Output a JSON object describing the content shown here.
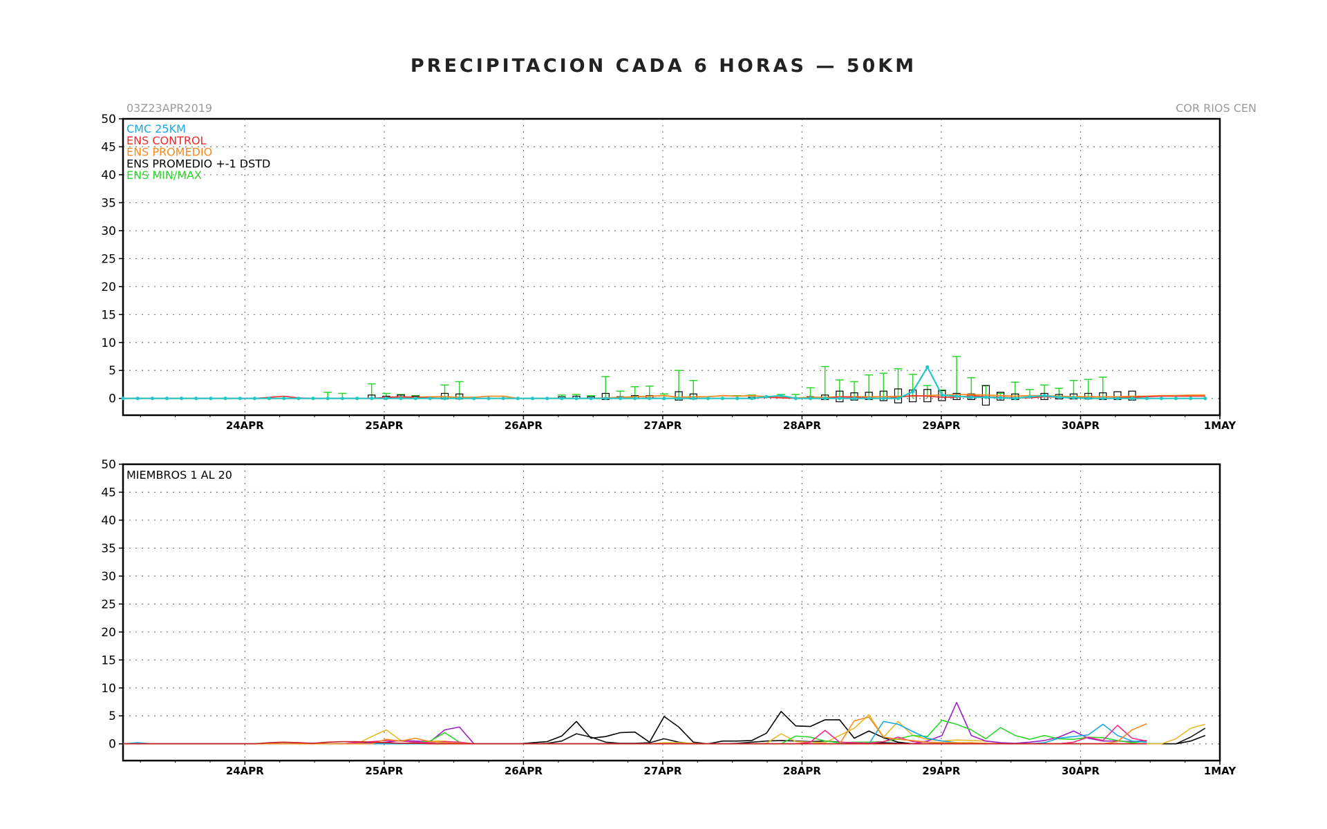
{
  "header": {
    "title": "PRECIPITACION CADA 6 HORAS — 50KM",
    "run_label": "03Z23APR2019",
    "region_label": "COR RIOS CEN"
  },
  "colors": {
    "cmc": "#1aa7e0",
    "control": "#f02a2a",
    "promedio": "#f58a1f",
    "std": "#000000",
    "minmax": "#2ad62a",
    "cmc_line": "#22c7c7"
  },
  "chart_data": [
    {
      "type": "line",
      "ylim": [
        -3,
        50
      ],
      "y_ticks": [
        0,
        5,
        10,
        15,
        20,
        25,
        30,
        35,
        40,
        45,
        50
      ],
      "x_range_days": [
        23.125,
        31.0
      ],
      "x_tick_labels": [
        "24APR",
        "25APR",
        "26APR",
        "27APR",
        "28APR",
        "29APR",
        "30APR",
        "1MAY"
      ],
      "legend": [
        "CMC 25KM",
        "ENS CONTROL",
        "ENS PROMEDIO",
        "ENS PROMEDIO +-1 DSTD",
        "ENS MIN/MAX"
      ],
      "legend_placement": "top-left",
      "grid": true,
      "cmc": [
        0,
        0,
        0,
        0,
        0,
        0,
        0,
        0,
        0,
        0,
        0,
        0,
        0,
        0,
        0,
        0,
        0,
        0,
        0,
        0,
        0,
        0,
        0,
        0,
        0,
        0,
        0,
        0,
        0,
        0,
        0,
        0,
        0,
        0,
        0,
        0,
        0,
        0,
        0,
        0,
        0,
        0,
        0,
        0,
        0.3,
        0.5,
        0,
        0,
        0,
        0,
        0,
        0,
        0,
        0,
        1.2,
        5.6,
        0.6,
        0.4,
        0.2,
        0.2,
        0.1,
        0,
        0.3,
        0.5,
        0.2,
        0.1,
        0,
        0,
        0,
        0,
        0,
        0,
        0,
        0,
        0
      ],
      "control": [
        0,
        0,
        0,
        0,
        0,
        0,
        0,
        0,
        0,
        0,
        0.2,
        0.4,
        0.1,
        0,
        0,
        0,
        0,
        0,
        0.2,
        0.3,
        0.2,
        0.1,
        0,
        0,
        0,
        0,
        0,
        0,
        0,
        0,
        0,
        0,
        0,
        0,
        0,
        0,
        0.1,
        0,
        0,
        0,
        0,
        0,
        0,
        0,
        0.2,
        0.1,
        0,
        0,
        0,
        0.3,
        0.2,
        0.1,
        0,
        0.2,
        0.5,
        0.4,
        0.2,
        0.2,
        0.5,
        0.3,
        0.2,
        0.1,
        0.1,
        0.3,
        0.2,
        0.1,
        0.1,
        0,
        0.1,
        0.2,
        0.3,
        0.4,
        0.4,
        0.4,
        0.4
      ],
      "promedio": [
        0,
        0,
        0,
        0,
        0,
        0,
        0,
        0,
        0,
        0,
        0,
        0,
        0,
        0,
        0,
        0,
        0,
        0,
        0,
        0.1,
        0.2,
        0.3,
        0.3,
        0.2,
        0.2,
        0.4,
        0.4,
        0,
        0,
        0,
        0,
        0,
        0,
        0.1,
        0.2,
        0.3,
        0.4,
        0.5,
        0.2,
        0.3,
        0.3,
        0.5,
        0.4,
        0.5,
        0.3,
        0.2,
        0.1,
        0.2,
        0.2,
        0.3,
        0.3,
        0.3,
        0.3,
        0.4,
        0.4,
        0.5,
        0.6,
        0.7,
        0.7,
        0.6,
        0.5,
        0.4,
        0.5,
        0.5,
        0.4,
        0.3,
        0.3,
        0.3,
        0.3,
        0.4,
        0.4,
        0.5,
        0.5,
        0.6,
        0.6
      ],
      "std_box": [
        [
          17,
          0,
          0.6
        ],
        [
          18,
          0,
          0.4
        ],
        [
          19,
          0,
          0.6
        ],
        [
          20,
          0,
          0.4
        ],
        [
          22,
          -0.1,
          0.9
        ],
        [
          23,
          -0.1,
          0.8
        ],
        [
          30,
          0,
          0.3
        ],
        [
          31,
          0,
          0.4
        ],
        [
          32,
          0,
          0.3
        ],
        [
          33,
          -0.2,
          0.9
        ],
        [
          34,
          0,
          0.3
        ],
        [
          35,
          0,
          0.5
        ],
        [
          36,
          0,
          0.5
        ],
        [
          38,
          -0.3,
          1.2
        ],
        [
          39,
          -0.1,
          0.8
        ],
        [
          43,
          0,
          0.2
        ],
        [
          47,
          0,
          0.3
        ],
        [
          48,
          -0.2,
          0.6
        ],
        [
          49,
          -0.6,
          1.3
        ],
        [
          50,
          -0.3,
          1.0
        ],
        [
          51,
          -0.2,
          1.1
        ],
        [
          52,
          -0.4,
          1.3
        ],
        [
          53,
          -0.8,
          1.7
        ],
        [
          54,
          -0.6,
          1.5
        ],
        [
          55,
          -0.6,
          1.6
        ],
        [
          56,
          -0.4,
          1.4
        ],
        [
          57,
          -0.2,
          0.9
        ],
        [
          58,
          -0.2,
          0.8
        ],
        [
          59,
          -1.2,
          2.3
        ],
        [
          60,
          -0.3,
          1.1
        ],
        [
          61,
          -0.2,
          0.8
        ],
        [
          63,
          -0.2,
          0.9
        ],
        [
          64,
          -0.1,
          0.7
        ],
        [
          65,
          -0.1,
          0.8
        ],
        [
          66,
          -0.1,
          0.9
        ],
        [
          67,
          -0.2,
          1.0
        ],
        [
          68,
          -0.2,
          1.2
        ],
        [
          69,
          -0.3,
          1.3
        ]
      ],
      "minmax_whisker_tops": [
        [
          14,
          1.1
        ],
        [
          15,
          0.9
        ],
        [
          17,
          2.6
        ],
        [
          18,
          0.9
        ],
        [
          19,
          0.7
        ],
        [
          20,
          0.5
        ],
        [
          22,
          2.4
        ],
        [
          23,
          3.0
        ],
        [
          30,
          0.6
        ],
        [
          31,
          0.7
        ],
        [
          32,
          0.5
        ],
        [
          33,
          3.9
        ],
        [
          34,
          1.3
        ],
        [
          35,
          2.1
        ],
        [
          36,
          2.2
        ],
        [
          37,
          0.8
        ],
        [
          38,
          5.0
        ],
        [
          39,
          3.2
        ],
        [
          42,
          0.5
        ],
        [
          43,
          0.6
        ],
        [
          45,
          0.7
        ],
        [
          46,
          0.7
        ],
        [
          47,
          1.9
        ],
        [
          48,
          5.7
        ],
        [
          49,
          3.3
        ],
        [
          50,
          3.0
        ],
        [
          51,
          4.2
        ],
        [
          52,
          4.5
        ],
        [
          53,
          5.3
        ],
        [
          54,
          4.3
        ],
        [
          55,
          2.3
        ],
        [
          56,
          1.5
        ],
        [
          57,
          7.5
        ],
        [
          58,
          3.7
        ],
        [
          59,
          2.3
        ],
        [
          60,
          0.9
        ],
        [
          61,
          2.9
        ],
        [
          62,
          1.6
        ],
        [
          63,
          2.4
        ],
        [
          64,
          1.8
        ],
        [
          65,
          3.2
        ],
        [
          66,
          3.4
        ],
        [
          67,
          3.8
        ]
      ]
    },
    {
      "type": "line",
      "ylim": [
        -3,
        50
      ],
      "y_ticks": [
        0,
        5,
        10,
        15,
        20,
        25,
        30,
        35,
        40,
        45,
        50
      ],
      "x_range_days": [
        23.125,
        31.0
      ],
      "x_tick_labels": [
        "24APR",
        "25APR",
        "26APR",
        "27APR",
        "28APR",
        "29APR",
        "30APR",
        "1MAY"
      ],
      "annotation": "MIEMBROS 1 AL 20",
      "grid": true,
      "series": [
        {
          "color": "#000000",
          "values": [
            0,
            0,
            0,
            0,
            0,
            0,
            0,
            0,
            0,
            0,
            0,
            0,
            0,
            0,
            0,
            0,
            0,
            0,
            0,
            0,
            0,
            0,
            0,
            0,
            0,
            0,
            0,
            0,
            0.2,
            0.4,
            1.4,
            4.0,
            1.0,
            1.3,
            2.0,
            2.1,
            0.3,
            4.9,
            3.0,
            0.3,
            0,
            0.5,
            0.5,
            0.6,
            1.9,
            5.8,
            3.2,
            3.1,
            4.3,
            4.3,
            1.0,
            2.3,
            1.1,
            0.3,
            0,
            0,
            0,
            0,
            0,
            0,
            0,
            0,
            0,
            0,
            0,
            0,
            0,
            0,
            0,
            0,
            0,
            0,
            0,
            0.5,
            1.5
          ]
        },
        {
          "color": "#111111",
          "values": [
            0,
            0,
            0,
            0,
            0,
            0,
            0,
            0,
            0,
            0,
            0,
            0,
            0,
            0,
            0,
            0,
            0,
            0,
            0,
            0,
            0,
            0,
            0,
            0,
            0,
            0,
            0,
            0,
            0,
            0.1,
            0.5,
            1.8,
            1.2,
            0.3,
            0.1,
            0.1,
            0.2,
            0.9,
            0.3,
            0,
            0,
            0,
            0.1,
            0.3,
            0.5,
            0.6,
            0.5,
            0.4,
            0.5,
            0.3,
            0.1,
            0.1,
            0.2,
            0.1,
            0,
            0,
            0,
            0,
            0,
            0,
            0,
            0,
            0,
            0,
            0,
            0,
            0,
            0,
            0,
            0,
            0,
            0,
            0,
            1.2,
            2.8
          ]
        },
        {
          "color": "#e6b82a",
          "values": [
            0,
            0,
            0,
            0,
            0,
            0,
            0,
            0,
            0,
            0,
            0,
            0,
            0,
            0,
            0,
            0,
            0,
            1.3,
            2.5,
            0.6,
            0.4,
            0.5,
            0.5,
            0.2,
            0,
            0,
            0,
            0,
            0,
            0,
            0,
            0,
            0,
            0,
            0,
            0,
            0,
            0.2,
            0.2,
            0.1,
            0,
            0,
            0,
            0,
            0.1,
            1.8,
            0.4,
            0.3,
            0.2,
            1.5,
            2.8,
            5.2,
            1.2,
            4.0,
            1.5,
            0.8,
            0.5,
            0.7,
            0.6,
            0.5,
            0.2,
            0,
            0,
            0,
            0,
            0,
            0,
            0,
            0,
            0,
            0,
            0,
            0.9,
            2.8,
            3.5
          ]
        },
        {
          "color": "#9b1fc7",
          "values": [
            0,
            0,
            0,
            0,
            0,
            0,
            0,
            0,
            0,
            0,
            0,
            0,
            0,
            0,
            0,
            0,
            0.3,
            0.1,
            0.3,
            0.6,
            0.5,
            0.4,
            2.5,
            3.0,
            0,
            0,
            0,
            0,
            0,
            0,
            0,
            0,
            0,
            0,
            0,
            0,
            0,
            0,
            0,
            0,
            0,
            0,
            0,
            0,
            0,
            0,
            0,
            0,
            0,
            0,
            0,
            0,
            0,
            0,
            0,
            0.5,
            1.5,
            7.4,
            1.5,
            0.5,
            0.2,
            0.1,
            0.3,
            0.6,
            1.2,
            2.3,
            1.0,
            0.5,
            0.5,
            0.4,
            0.6
          ]
        },
        {
          "color": "#2ad62a",
          "values": [
            0,
            0,
            0,
            0,
            0,
            0,
            0,
            0,
            0,
            0,
            0,
            0,
            0,
            0,
            0,
            0,
            0,
            0,
            0,
            0,
            0.2,
            0.5,
            2.0,
            0.3,
            0,
            0,
            0,
            0,
            0,
            0,
            0,
            0,
            0,
            0,
            0,
            0,
            0,
            0,
            0,
            0,
            0,
            0,
            0,
            0,
            0,
            0,
            1.4,
            1.2,
            0.5,
            0.2,
            0.3,
            0.3,
            0.4,
            0.9,
            1.5,
            1.3,
            4.2,
            3.5,
            2.5,
            0.9,
            2.9,
            1.5,
            0.8,
            1.5,
            0.9,
            0.8,
            1.2,
            1.1,
            0.6,
            0.2,
            0.5
          ]
        },
        {
          "color": "#1aa7e0",
          "values": [
            0,
            0.2,
            0,
            0,
            0,
            0,
            0,
            0,
            0,
            0,
            0,
            0,
            0,
            0,
            0,
            0,
            0,
            0,
            0,
            0,
            0,
            0,
            0,
            0,
            0,
            0,
            0,
            0,
            0,
            0,
            0,
            0,
            0,
            0,
            0,
            0,
            0,
            0,
            0,
            0,
            0,
            0,
            0,
            0,
            0,
            0,
            0,
            0,
            0,
            0,
            0,
            0,
            4.0,
            3.5,
            2.2,
            1.0,
            0.5,
            0.2,
            0.1,
            0,
            0,
            0,
            0,
            0.2,
            1.0,
            1.3,
            1.6,
            3.5,
            1.5,
            0.5,
            0.3
          ]
        },
        {
          "color": "#f02a8a",
          "values": [
            0,
            0,
            0,
            0,
            0,
            0,
            0,
            0,
            0,
            0,
            0,
            0,
            0,
            0,
            0,
            0,
            0.2,
            0.4,
            0.6,
            0.5,
            0.3,
            0.2,
            0.4,
            0.3,
            0,
            0,
            0,
            0,
            0,
            0,
            0,
            0,
            0,
            0,
            0,
            0,
            0,
            0,
            0,
            0,
            0,
            0,
            0,
            0,
            0,
            0,
            0,
            0.3,
            2.4,
            0.3,
            0.2,
            0.1,
            0.4,
            1.2,
            0.4,
            0.3,
            0.2,
            0,
            0,
            0,
            0,
            0,
            0,
            0,
            0,
            0.3,
            1.2,
            0.6,
            3.3,
            1.0,
            0.5
          ]
        },
        {
          "color": "#f58a1f",
          "values": [
            0,
            0,
            0,
            0,
            0,
            0,
            0,
            0,
            0,
            0,
            0,
            0,
            0,
            0,
            0,
            0,
            0,
            0,
            0.8,
            0.5,
            1.0,
            0.4,
            0.2,
            0.1,
            0,
            0,
            0,
            0,
            0,
            0,
            0,
            0,
            0,
            0,
            0,
            0,
            0,
            0,
            0,
            0,
            0,
            0,
            0,
            0,
            0,
            0,
            0,
            0,
            0,
            0,
            4.1,
            4.8,
            1.2,
            0.8,
            0.6,
            0.3,
            0.2,
            0.2,
            0.2,
            0.1,
            0,
            0,
            0,
            0,
            0,
            0,
            0,
            0,
            0.4,
            2.5,
            3.6
          ]
        },
        {
          "color": "#c81e1e",
          "values": [
            0,
            0,
            0,
            0,
            0,
            0,
            0,
            0,
            0,
            0,
            0.2,
            0.3,
            0.2,
            0.1,
            0.3,
            0.4,
            0.4,
            0.3,
            0.2,
            0.1,
            0.1,
            0,
            0,
            0,
            0,
            0,
            0,
            0,
            0,
            0,
            0,
            0,
            0,
            0,
            0,
            0,
            0,
            0,
            0,
            0,
            0,
            0,
            0,
            0,
            0,
            0,
            0,
            0,
            0,
            0,
            0,
            0,
            0,
            0,
            0,
            0,
            0,
            0,
            0,
            0,
            0,
            0,
            0,
            0,
            0,
            0,
            0,
            0,
            0,
            0,
            0
          ]
        }
      ]
    }
  ]
}
